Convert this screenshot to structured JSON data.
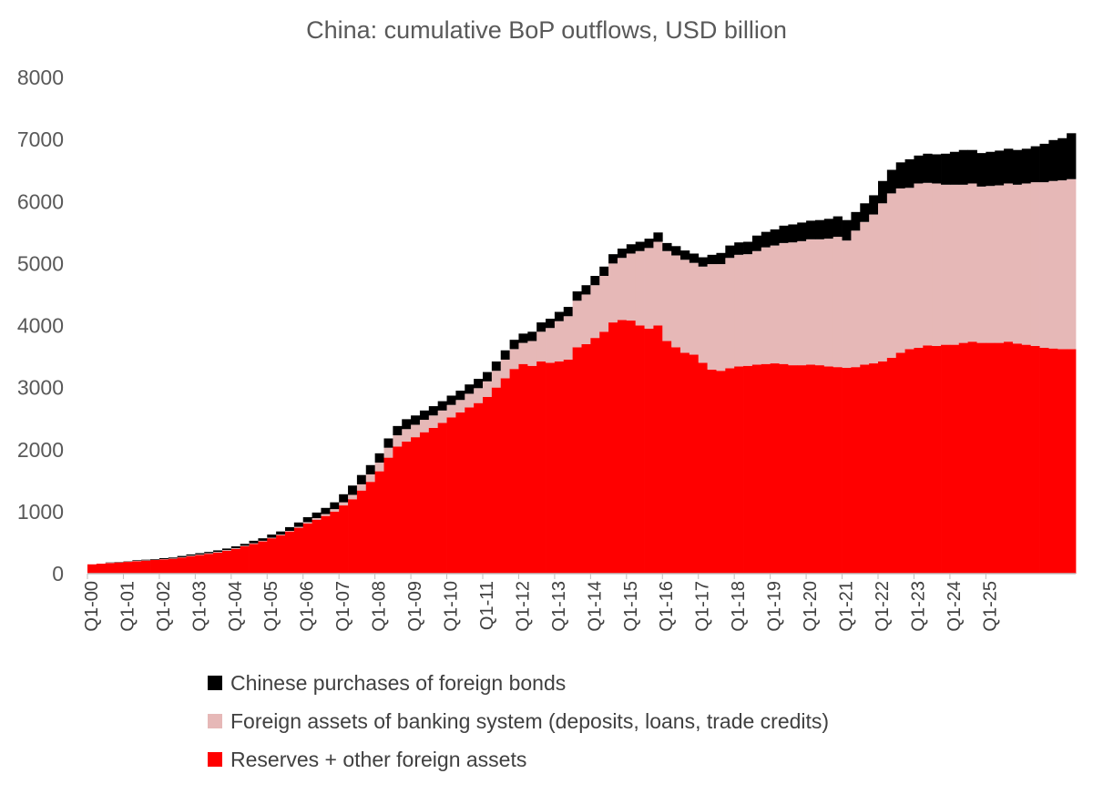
{
  "chart_data": {
    "type": "area",
    "stacked": true,
    "title": "China: cumulative BoP outflows, USD billion",
    "ylim": [
      0,
      8000
    ],
    "yticks": [
      0,
      1000,
      2000,
      3000,
      4000,
      5000,
      6000,
      7000,
      8000
    ],
    "grid": false,
    "legend_position": "bottom",
    "x_start": "Q1-00",
    "x_tick_labels": [
      "Q1-00",
      "Q1-01",
      "Q1-02",
      "Q1-03",
      "Q1-04",
      "Q1-05",
      "Q1-06",
      "Q1-07",
      "Q1-08",
      "Q1-09",
      "Q1-10",
      "Q1-11",
      "Q1-12",
      "Q1-13",
      "Q1-14",
      "Q1-15",
      "Q1-16",
      "Q1-17",
      "Q1-18",
      "Q1-19",
      "Q1-20",
      "Q1-21",
      "Q1-22",
      "Q1-23",
      "Q1-24",
      "Q1-25"
    ],
    "series": [
      {
        "name": "Reserves + other foreign assets",
        "color": "#ff0000",
        "values": [
          150,
          160,
          170,
          180,
          190,
          200,
          210,
          220,
          230,
          240,
          260,
          280,
          300,
          320,
          340,
          370,
          400,
          440,
          480,
          520,
          570,
          620,
          680,
          740,
          810,
          870,
          930,
          1000,
          1100,
          1200,
          1340,
          1480,
          1650,
          1870,
          2050,
          2130,
          2200,
          2280,
          2350,
          2430,
          2520,
          2600,
          2680,
          2750,
          2850,
          3000,
          3150,
          3300,
          3380,
          3350,
          3420,
          3400,
          3420,
          3450,
          3650,
          3700,
          3800,
          3900,
          4050,
          4090,
          4080,
          4000,
          3950,
          4000,
          3750,
          3650,
          3560,
          3530,
          3400,
          3290,
          3270,
          3310,
          3340,
          3350,
          3370,
          3380,
          3390,
          3380,
          3360,
          3360,
          3370,
          3360,
          3340,
          3330,
          3320,
          3330,
          3370,
          3390,
          3420,
          3480,
          3560,
          3620,
          3640,
          3680,
          3670,
          3690,
          3690,
          3720,
          3740,
          3720,
          3720,
          3720,
          3740,
          3710,
          3690,
          3670,
          3640,
          3630,
          3620,
          3620
        ]
      },
      {
        "name": "Foreign assets of banking system (deposits, loans, trade credits)",
        "color": "#e6b8b7",
        "values": [
          0,
          0,
          5,
          5,
          5,
          5,
          5,
          5,
          5,
          5,
          5,
          10,
          10,
          10,
          10,
          10,
          10,
          10,
          10,
          10,
          10,
          10,
          10,
          15,
          20,
          25,
          30,
          40,
          50,
          70,
          100,
          120,
          140,
          160,
          180,
          200,
          200,
          200,
          200,
          200,
          200,
          200,
          220,
          240,
          250,
          270,
          300,
          320,
          340,
          400,
          480,
          560,
          650,
          700,
          750,
          800,
          850,
          900,
          950,
          1000,
          1080,
          1200,
          1300,
          1350,
          1450,
          1480,
          1500,
          1480,
          1550,
          1700,
          1720,
          1780,
          1800,
          1800,
          1830,
          1880,
          1900,
          1950,
          1980,
          2000,
          2020,
          2030,
          2060,
          2100,
          2050,
          2200,
          2300,
          2400,
          2550,
          2650,
          2650,
          2600,
          2650,
          2620,
          2620,
          2580,
          2580,
          2550,
          2550,
          2520,
          2530,
          2540,
          2550,
          2560,
          2600,
          2640,
          2670,
          2700,
          2720,
          2740
        ]
      },
      {
        "name": "Chinese purchases of foreign bonds",
        "color": "#000000",
        "values": [
          0,
          0,
          5,
          5,
          5,
          10,
          10,
          10,
          15,
          15,
          20,
          20,
          20,
          20,
          25,
          25,
          30,
          30,
          40,
          40,
          50,
          50,
          60,
          70,
          80,
          90,
          100,
          110,
          130,
          150,
          150,
          150,
          150,
          150,
          150,
          160,
          150,
          150,
          150,
          150,
          150,
          150,
          150,
          150,
          150,
          150,
          150,
          150,
          150,
          150,
          150,
          150,
          150,
          150,
          150,
          150,
          150,
          150,
          150,
          150,
          150,
          150,
          150,
          150,
          130,
          150,
          150,
          150,
          150,
          150,
          180,
          200,
          200,
          200,
          250,
          250,
          260,
          280,
          290,
          300,
          300,
          310,
          320,
          330,
          330,
          300,
          300,
          310,
          360,
          380,
          420,
          460,
          450,
          470,
          470,
          500,
          530,
          560,
          540,
          540,
          550,
          560,
          560,
          560,
          560,
          580,
          620,
          660,
          680,
          740
        ]
      }
    ]
  }
}
